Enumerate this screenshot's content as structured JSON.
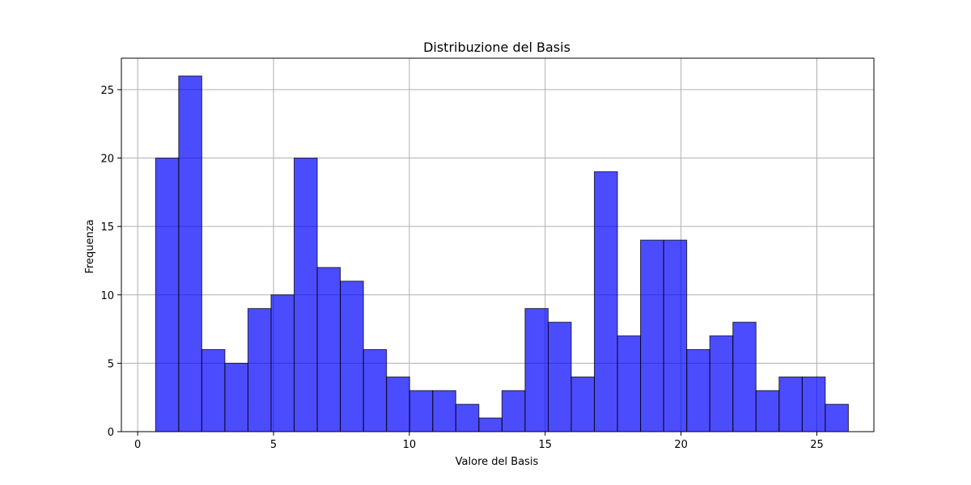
{
  "chart_data": {
    "type": "bar",
    "title": "Distribuzione del Basis",
    "xlabel": "Valore del Basis",
    "ylabel": "Frequenza",
    "xlim": [
      -0.6,
      27.1
    ],
    "ylim": [
      0,
      27.3
    ],
    "xticks": [
      0,
      5,
      10,
      15,
      20,
      25
    ],
    "yticks": [
      0,
      5,
      10,
      15,
      20,
      25
    ],
    "grid": true,
    "bin_edges": [
      0.66,
      1.51,
      2.36,
      3.21,
      4.06,
      4.91,
      5.76,
      6.61,
      7.46,
      8.31,
      9.16,
      10.01,
      10.86,
      11.71,
      12.56,
      13.41,
      14.26,
      15.11,
      15.96,
      16.81,
      17.66,
      18.51,
      19.36,
      20.21,
      21.06,
      21.91,
      22.76,
      23.61,
      24.46,
      25.31,
      26.16
    ],
    "values": [
      20,
      26,
      6,
      5,
      9,
      10,
      20,
      12,
      11,
      6,
      4,
      3,
      3,
      2,
      1,
      3,
      9,
      8,
      4,
      19,
      7,
      14,
      14,
      6,
      7,
      8,
      3,
      4,
      4,
      2
    ],
    "bar_color": "#0000ff",
    "bar_opacity": 0.7,
    "edge_color": "#000000",
    "grid_color": "#b0b0b0"
  }
}
